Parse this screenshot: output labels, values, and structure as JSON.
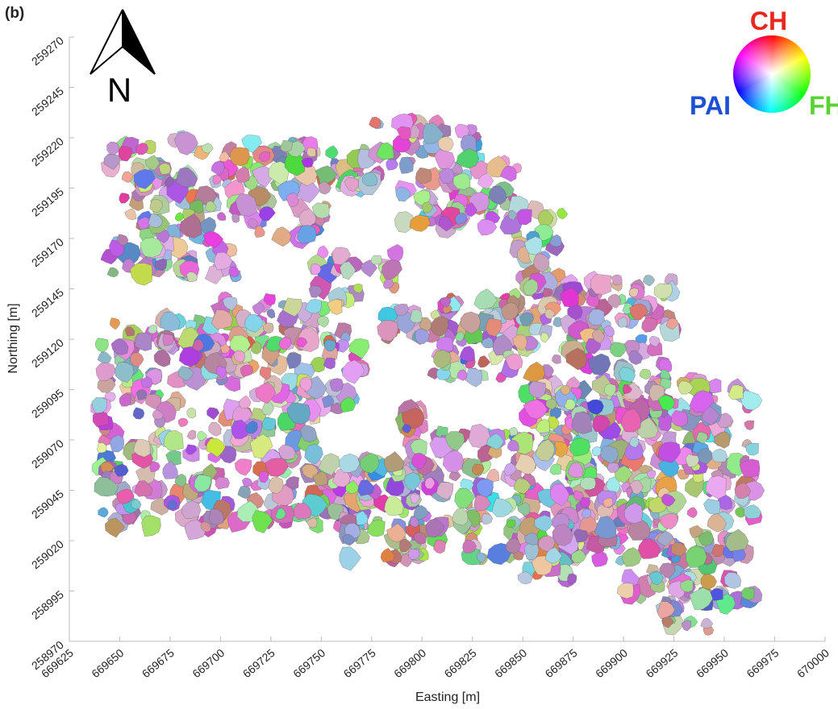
{
  "panel_label": "(b)",
  "north_arrow": {
    "letter": "N",
    "icon": "north-arrow-icon"
  },
  "color_wheel": {
    "top_label": "CH",
    "top_color": "#e8281e",
    "left_label": "PAI",
    "left_color": "#1e50d2",
    "right_label": "FH",
    "right_color": "#5ad232"
  },
  "axes": {
    "xlabel": "Easting [m]",
    "ylabel": "Northing [m]",
    "xlim": [
      669625,
      670000
    ],
    "ylim": [
      258970,
      259270
    ],
    "x_ticks": [
      "669625",
      "669650",
      "669675",
      "669700",
      "669725",
      "669750",
      "669775",
      "669800",
      "669825",
      "669850",
      "669875",
      "669900",
      "669925",
      "669950",
      "669975",
      "670000"
    ],
    "y_ticks": [
      "258970",
      "258995",
      "259020",
      "259045",
      "259070",
      "259095",
      "259120",
      "259145",
      "259170",
      "259195",
      "259220",
      "259245",
      "259270"
    ]
  },
  "map_content": {
    "type": "tree-crown segmentation map",
    "encoding": "RGB color wheel: CH (red), FH (green), PAI (blue)",
    "crown_regions": [
      {
        "x": [
          669645,
          669770
        ],
        "y": [
          259110,
          259220
        ]
      },
      {
        "x": [
          669770,
          669830
        ],
        "y": [
          259150,
          259230
        ]
      },
      {
        "x": [
          669810,
          669850
        ],
        "y": [
          259120,
          259210
        ]
      },
      {
        "x": [
          669850,
          669870
        ],
        "y": [
          259130,
          259190
        ]
      },
      {
        "x": [
          669640,
          669780
        ],
        "y": [
          259025,
          259120
        ]
      },
      {
        "x": [
          669780,
          669870
        ],
        "y": [
          259070,
          259150
        ]
      },
      {
        "x": [
          669870,
          669925
        ],
        "y": [
          259020,
          259150
        ]
      },
      {
        "x": [
          669790,
          669900
        ],
        "y": [
          259010,
          259095
        ]
      },
      {
        "x": [
          669900,
          669965
        ],
        "y": [
          258990,
          259100
        ]
      },
      {
        "x": [
          669920,
          669955
        ],
        "y": [
          258975,
          259000
        ]
      },
      {
        "x": [
          669760,
          669800
        ],
        "y": [
          259010,
          259060
        ]
      },
      {
        "x": [
          669850,
          669880
        ],
        "y": [
          259000,
          259030
        ]
      }
    ],
    "gaps": [
      {
        "x": [
          669710,
          669745
        ],
        "y": [
          259140,
          259170
        ]
      },
      {
        "x": [
          669755,
          669790
        ],
        "y": [
          259165,
          259195
        ]
      },
      {
        "x": [
          669790,
          669845
        ],
        "y": [
          259140,
          259175
        ]
      },
      {
        "x": [
          669800,
          669850
        ],
        "y": [
          259075,
          259100
        ]
      },
      {
        "x": [
          669770,
          669805
        ],
        "y": [
          259085,
          259120
        ]
      },
      {
        "x": [
          669750,
          669790
        ],
        "y": [
          259060,
          259085
        ]
      },
      {
        "x": [
          669640,
          669700
        ],
        "y": [
          259130,
          259150
        ]
      }
    ]
  }
}
